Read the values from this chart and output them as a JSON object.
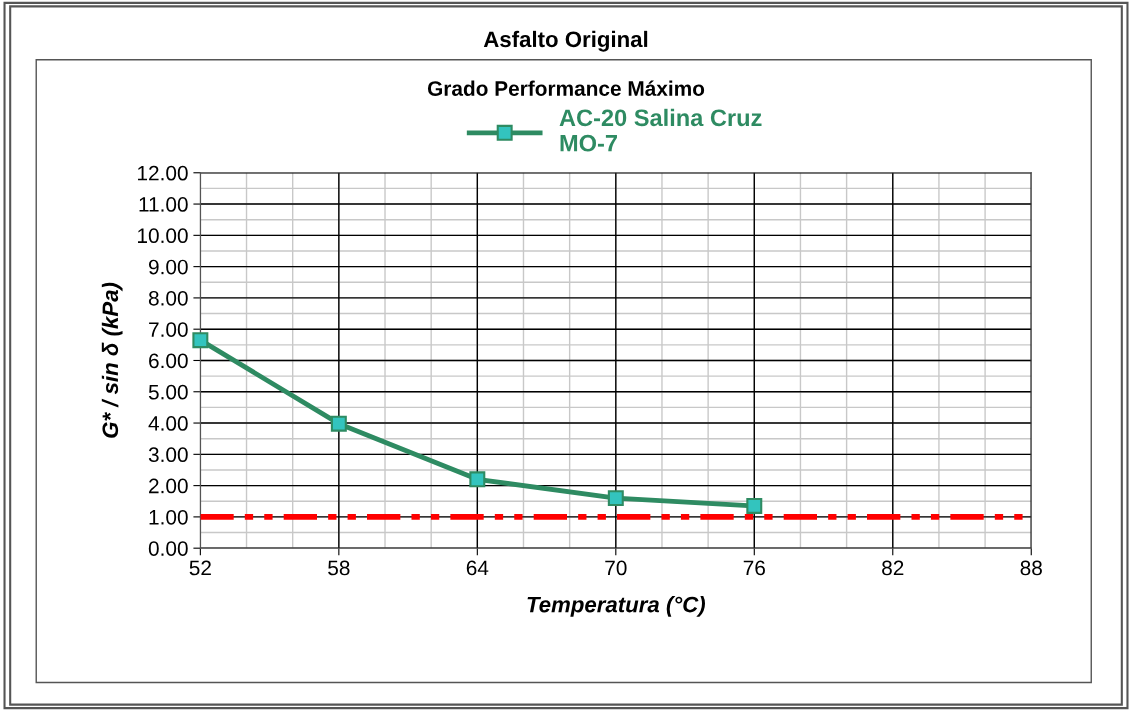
{
  "chart_data": {
    "type": "line",
    "title": "Asfalto Original",
    "subtitle": "Grado Performance Máximo",
    "xlabel": "Temperatura (°C)",
    "ylabel": "G* / sin δ (kPa)",
    "x": [
      52,
      58,
      64,
      70,
      76
    ],
    "series": [
      {
        "name": "AC-20 Salina Cruz\nMO-7",
        "color": "#2e8b62",
        "values": [
          6.65,
          3.98,
          2.2,
          1.6,
          1.35
        ]
      }
    ],
    "xlim": [
      52,
      88
    ],
    "xticks": [
      52,
      58,
      64,
      70,
      76,
      82,
      88
    ],
    "ylim": [
      0,
      12
    ],
    "yticks": [
      {
        "value": 0,
        "label": "0.00"
      },
      {
        "value": 1,
        "label": "1.00"
      },
      {
        "value": 2,
        "label": "2.00"
      },
      {
        "value": 3,
        "label": "3.00"
      },
      {
        "value": 4,
        "label": "4.00"
      },
      {
        "value": 5,
        "label": "5.00"
      },
      {
        "value": 6,
        "label": "6.00"
      },
      {
        "value": 7,
        "label": "7.00"
      },
      {
        "value": 8,
        "label": "8.00"
      },
      {
        "value": 9,
        "label": "9.00"
      },
      {
        "value": 10,
        "label": "10.00"
      },
      {
        "value": 11,
        "label": "11.00"
      },
      {
        "value": 12,
        "label": "12.00"
      }
    ],
    "ref_lines": [
      {
        "axis": "y",
        "value": 1,
        "color": "#ff0000",
        "line_style": "dashed"
      }
    ],
    "grid": true,
    "legend": "top",
    "marker": "square",
    "line_style": "solid"
  }
}
